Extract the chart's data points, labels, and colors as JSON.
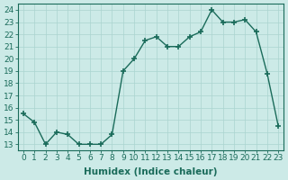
{
  "x": [
    0,
    1,
    2,
    3,
    4,
    5,
    6,
    7,
    8,
    9,
    10,
    11,
    12,
    13,
    14,
    15,
    16,
    17,
    18,
    19,
    20,
    21,
    22,
    23
  ],
  "y": [
    15.5,
    14.8,
    13.0,
    14.0,
    13.8,
    13.0,
    13.0,
    13.0,
    13.8,
    19.0,
    20.0,
    21.5,
    21.8,
    21.0,
    21.0,
    21.8,
    22.2,
    24.0,
    23.0,
    23.0,
    23.2,
    22.2,
    18.8,
    14.5
  ],
  "line_color": "#1a6b5a",
  "marker": "+",
  "marker_size": 4,
  "marker_linewidth": 1.2,
  "linewidth": 1.0,
  "background_color": "#cceae7",
  "grid_color": "#aad4cf",
  "xlabel": "Humidex (Indice chaleur)",
  "xlim": [
    -0.5,
    23.5
  ],
  "ylim": [
    12.5,
    24.5
  ],
  "yticks": [
    13,
    14,
    15,
    16,
    17,
    18,
    19,
    20,
    21,
    22,
    23,
    24
  ],
  "xtick_labels": [
    "0",
    "1",
    "2",
    "3",
    "4",
    "5",
    "6",
    "7",
    "8",
    "9",
    "10",
    "11",
    "12",
    "13",
    "14",
    "15",
    "16",
    "17",
    "18",
    "19",
    "20",
    "21",
    "22",
    "23"
  ],
  "tick_color": "#1a6b5a",
  "label_fontsize": 7.5,
  "tick_fontsize": 6.5
}
